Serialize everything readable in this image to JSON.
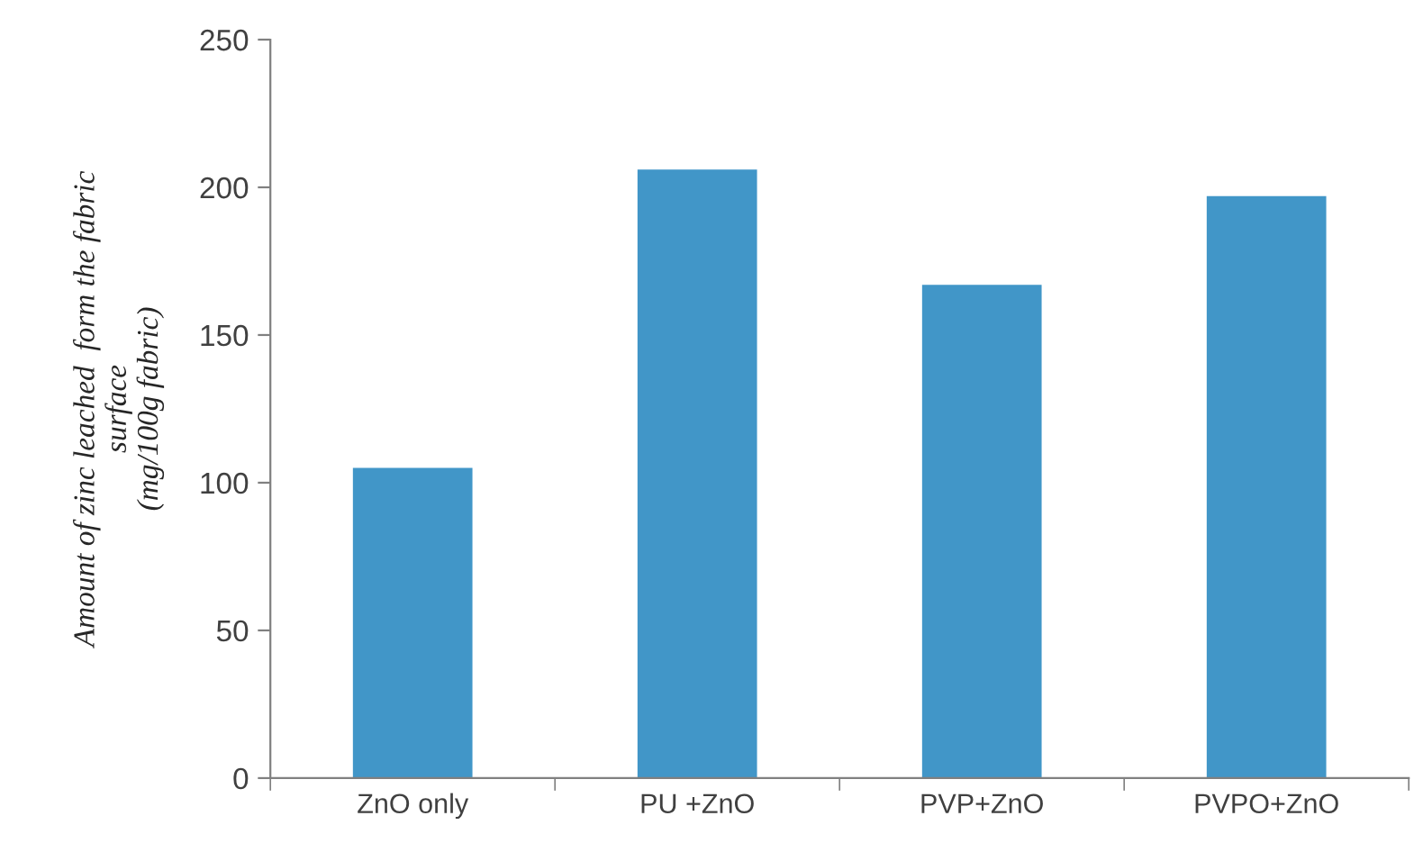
{
  "chart_data": {
    "type": "bar",
    "ylabel": "Amount of zinc leached  form the fabric\nsurface\n(mg/100g fabric)",
    "categories": [
      "ZnO only",
      "PU +ZnO",
      "PVP+ZnO",
      "PVPO+ZnO"
    ],
    "values": [
      105,
      206,
      167,
      197
    ],
    "color": "#4196c8",
    "ylim": [
      0,
      250
    ],
    "yticks": [
      0,
      50,
      100,
      150,
      200,
      250
    ],
    "grid": false,
    "legend": false
  }
}
